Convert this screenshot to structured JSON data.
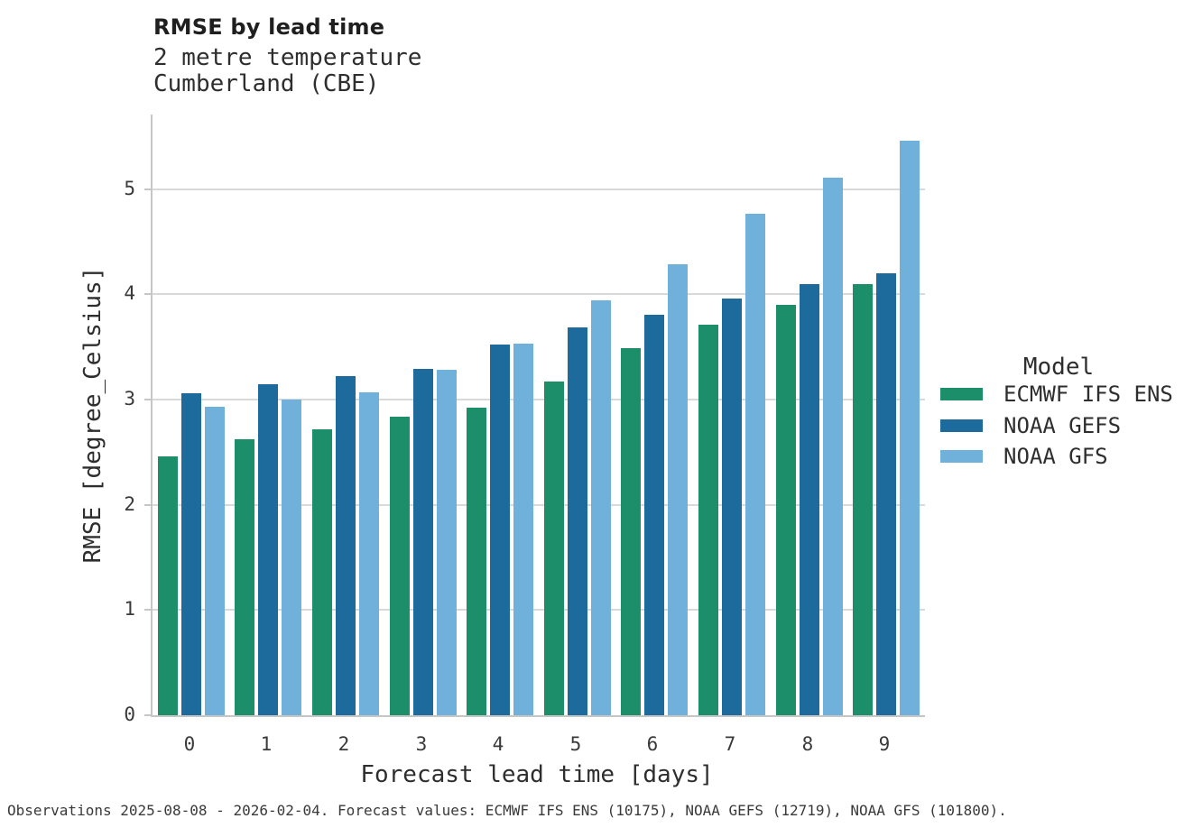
{
  "header": {
    "title": "RMSE by lead time",
    "subtitle_line1": "2 metre temperature",
    "subtitle_line2": "Cumberland (CBE)"
  },
  "chart_data": {
    "type": "bar",
    "title": "RMSE by lead time",
    "subtitle": [
      "2 metre temperature",
      "Cumberland (CBE)"
    ],
    "xlabel": "Forecast lead time [days]",
    "ylabel": "RMSE [degree_Celsius]",
    "categories": [
      "0",
      "1",
      "2",
      "3",
      "4",
      "5",
      "6",
      "7",
      "8",
      "9"
    ],
    "series": [
      {
        "name": "ECMWF IFS ENS",
        "color": "#1c8e69",
        "values": [
          2.46,
          2.62,
          2.72,
          2.84,
          2.92,
          3.17,
          3.49,
          3.71,
          3.9,
          4.1
        ]
      },
      {
        "name": "NOAA GEFS",
        "color": "#1d6b9c",
        "values": [
          3.06,
          3.15,
          3.22,
          3.29,
          3.52,
          3.69,
          3.81,
          3.96,
          4.1,
          4.2
        ]
      },
      {
        "name": "NOAA GFS",
        "color": "#6fb1db",
        "values": [
          2.93,
          3.0,
          3.07,
          3.28,
          3.53,
          3.94,
          4.29,
          4.77,
          5.11,
          5.46
        ]
      }
    ],
    "y_ticks": [
      0,
      1,
      2,
      3,
      4,
      5
    ],
    "ylim": [
      0,
      5.71
    ],
    "grid": "horizontal",
    "legend_title": "Model",
    "legend_position": "right-of-plot"
  },
  "legend": {
    "title": "Model",
    "entries": [
      {
        "label": "ECMWF IFS ENS",
        "color": "#1c8e69"
      },
      {
        "label": "NOAA GEFS",
        "color": "#1d6b9c"
      },
      {
        "label": "NOAA GFS",
        "color": "#6fb1db"
      }
    ]
  },
  "axes": {
    "xlabel": "Forecast lead time [days]",
    "ylabel": "RMSE [degree_Celsius]"
  },
  "footer": {
    "note": "Observations 2025-08-08 - 2026-02-04. Forecast values: ECMWF IFS ENS (10175), NOAA GEFS (12719), NOAA GFS (101800)."
  },
  "colors": {
    "grid": "#d9d9d9",
    "spine": "#c6c6c6",
    "text": "#2e2e2e",
    "tick_text": "#3a3a3a"
  }
}
